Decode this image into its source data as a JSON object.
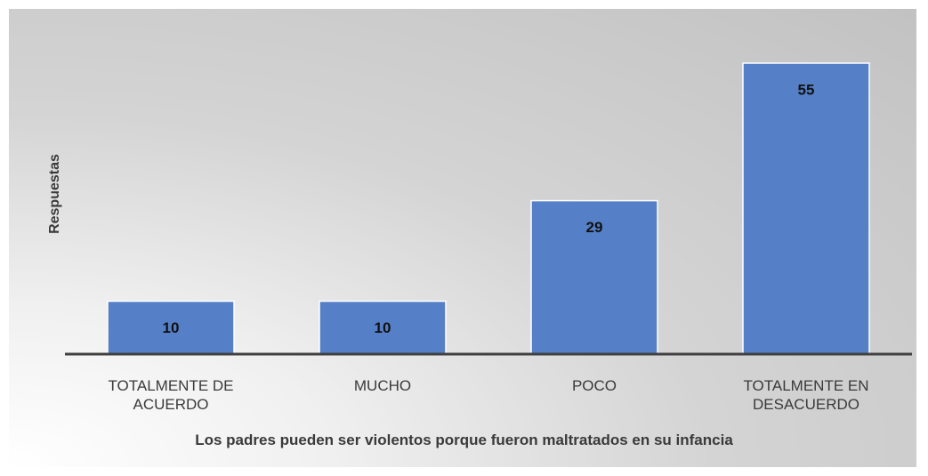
{
  "chart_data": {
    "type": "bar",
    "x_label": "Los padres pueden ser violentos porque fueron maltratados en su infancia",
    "y_label": "Respuestas",
    "categories": [
      "TOTALMENTE DE ACUERDO",
      "MUCHO",
      "POCO",
      "TOTALMENTE EN DESACUERDO"
    ],
    "values": [
      10,
      10,
      29,
      55
    ],
    "color": "#5580c8"
  }
}
